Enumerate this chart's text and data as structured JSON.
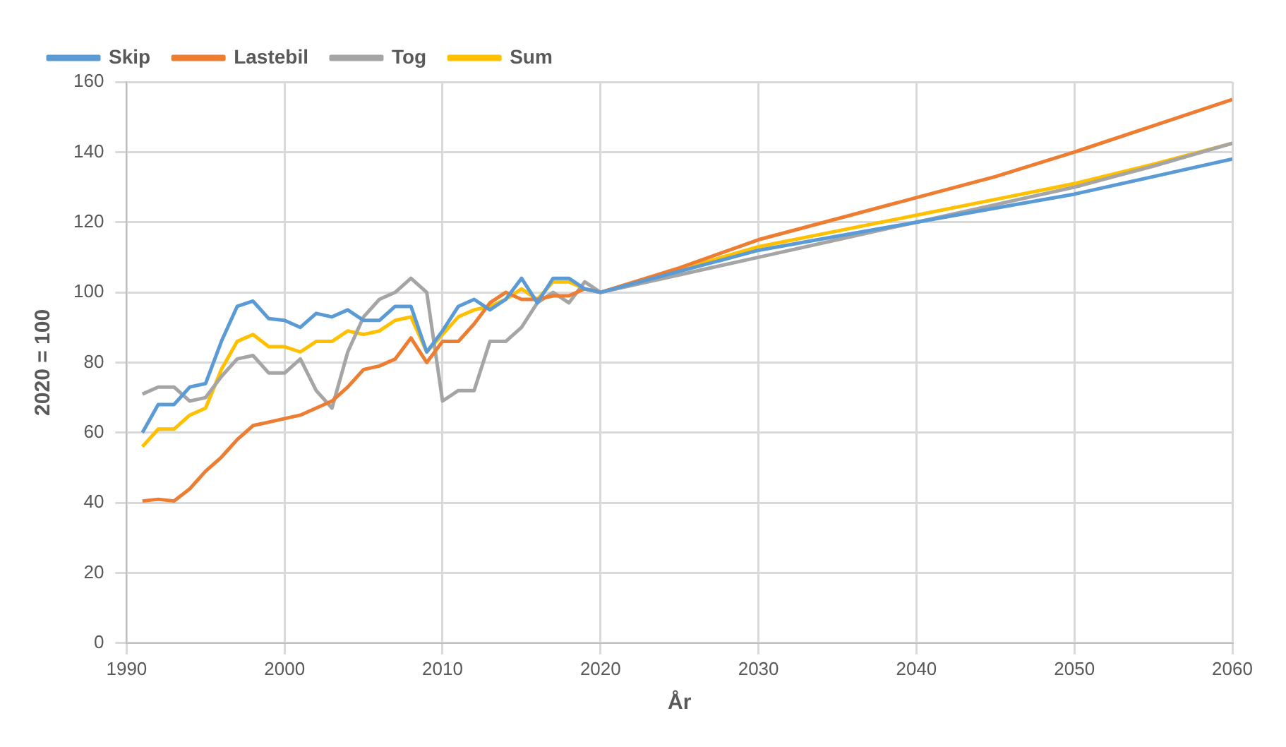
{
  "chart_data": {
    "type": "line",
    "xlabel": "År",
    "ylabel": "2020 = 100",
    "x": [
      1991,
      1992,
      1993,
      1994,
      1995,
      1996,
      1997,
      1998,
      1999,
      2000,
      2001,
      2002,
      2003,
      2004,
      2005,
      2006,
      2007,
      2008,
      2009,
      2010,
      2011,
      2012,
      2013,
      2014,
      2015,
      2016,
      2017,
      2018,
      2019,
      2020,
      2025,
      2030,
      2035,
      2040,
      2045,
      2050,
      2055,
      2060
    ],
    "series": [
      {
        "name": "Skip",
        "color": "#5b9bd5",
        "values": [
          60,
          68,
          68,
          73,
          74,
          86,
          96,
          97.5,
          92.5,
          92,
          90,
          94,
          93,
          95,
          92,
          92,
          96,
          96,
          83,
          89,
          96,
          98,
          95,
          98,
          104,
          97,
          104,
          104,
          101,
          100,
          106,
          112,
          116,
          120,
          124,
          128,
          133,
          138
        ]
      },
      {
        "name": "Lastebil",
        "color": "#ed7d31",
        "values": [
          40.5,
          41,
          40.5,
          44,
          49,
          53,
          58,
          62,
          63,
          64,
          65,
          67,
          69,
          73,
          78,
          79,
          81,
          87,
          80,
          86,
          86,
          91,
          97,
          100,
          98,
          98,
          99,
          99,
          101,
          100,
          107,
          115,
          121,
          127,
          133,
          140,
          147.5,
          155
        ]
      },
      {
        "name": "Tog",
        "color": "#a5a5a5",
        "values": [
          71,
          73,
          73,
          69,
          70,
          76,
          81,
          82,
          77,
          77,
          81,
          72,
          67,
          83,
          93,
          98,
          100,
          104,
          100,
          69,
          72,
          72,
          86,
          86,
          90,
          97,
          100,
          97,
          103,
          100,
          105,
          110,
          115,
          120,
          125,
          130,
          136,
          142.5
        ]
      },
      {
        "name": "Sum",
        "color": "#ffc000",
        "values": [
          56,
          61,
          61,
          65,
          67,
          78,
          86,
          88,
          84.5,
          84.5,
          83,
          86,
          86,
          89,
          88,
          89,
          92,
          93,
          83,
          88,
          93,
          95,
          96,
          98,
          101,
          98,
          103,
          103,
          101,
          100,
          106.5,
          113,
          117.5,
          122,
          126.5,
          131,
          136.5,
          142.5
        ]
      }
    ],
    "xlim": [
      1990,
      2060
    ],
    "xticks": [
      1990,
      2000,
      2010,
      2020,
      2030,
      2040,
      2050,
      2060
    ],
    "ylim": [
      0,
      160
    ],
    "yticks": [
      0,
      20,
      40,
      60,
      80,
      100,
      120,
      140,
      160
    ],
    "grid": true,
    "legend": "top left",
    "marker": "none",
    "line_style": "solid"
  }
}
